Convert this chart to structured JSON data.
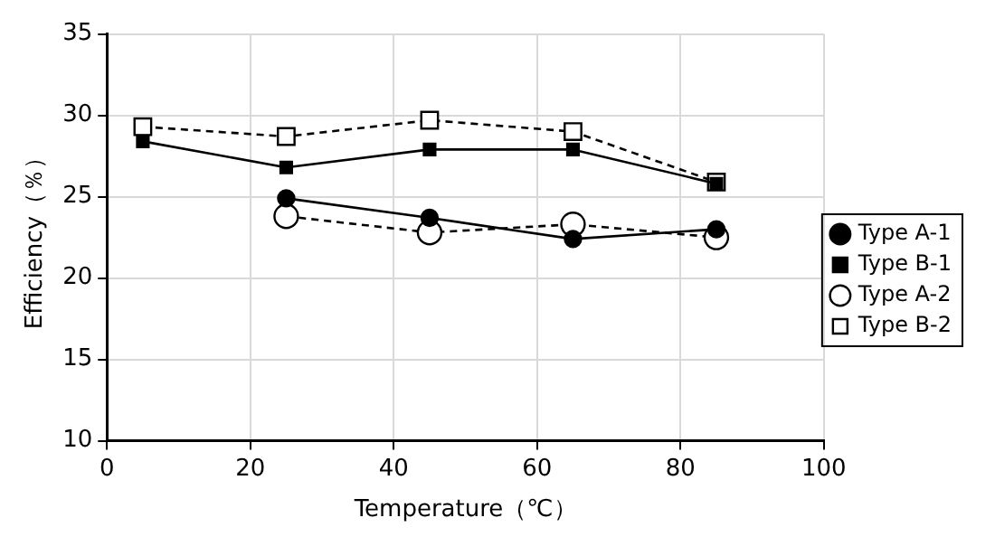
{
  "chart_data": {
    "type": "line",
    "xlabel": "Temperature（℃）",
    "ylabel": "Efficiency（％）",
    "x": [
      5,
      25,
      45,
      65,
      85
    ],
    "series": [
      {
        "name": "Type A-1",
        "color": "#000000",
        "marker": "circle",
        "line_style": "solid",
        "values": [
          null,
          24.9,
          23.7,
          22.4,
          23.0
        ]
      },
      {
        "name": "Type A-2",
        "color": "#000000",
        "marker": "circle",
        "line_style": "dashed",
        "values": [
          null,
          23.8,
          22.8,
          23.3,
          22.5
        ]
      },
      {
        "name": "Type B-1",
        "color": "#000000",
        "marker": "square",
        "line_style": "solid",
        "values": [
          28.4,
          26.8,
          27.9,
          27.9,
          25.8
        ]
      },
      {
        "name": "Type B-2",
        "color": "#000000",
        "marker": "square",
        "line_style": "dashed",
        "values": [
          29.3,
          28.7,
          29.7,
          29.0,
          25.9
        ]
      }
    ],
    "xlim": [
      0,
      100
    ],
    "xticks": [
      0,
      20,
      40,
      60,
      80,
      100
    ],
    "ylim": [
      10,
      35
    ],
    "yticks": [
      10,
      15,
      20,
      25,
      30,
      35
    ],
    "grid": true,
    "legend": "right"
  }
}
